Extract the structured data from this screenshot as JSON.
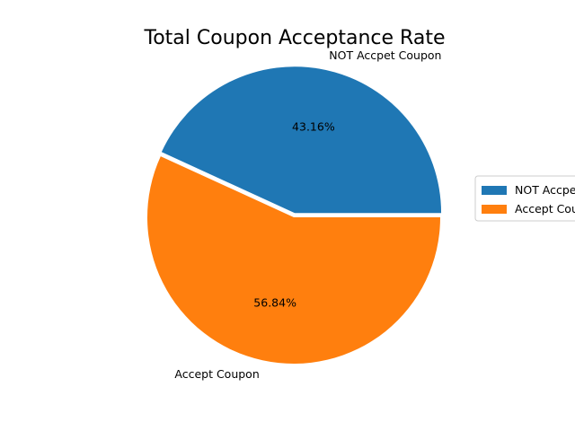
{
  "chart_data": {
    "type": "pie",
    "title": "Total Coupon Acceptance Rate",
    "categories": [
      "NOT Accpet Coupon",
      "Accept Coupon"
    ],
    "values": [
      43.16,
      56.84
    ],
    "percent_labels": [
      "43.16%",
      "56.84%"
    ],
    "legend_labels": [
      "NOT Accpet Coupon",
      "Accept Coupon"
    ],
    "colors": [
      "#1f77b4",
      "#ff7f0e"
    ],
    "explode": [
      0.03,
      0
    ],
    "legend_placement": "center-right"
  }
}
